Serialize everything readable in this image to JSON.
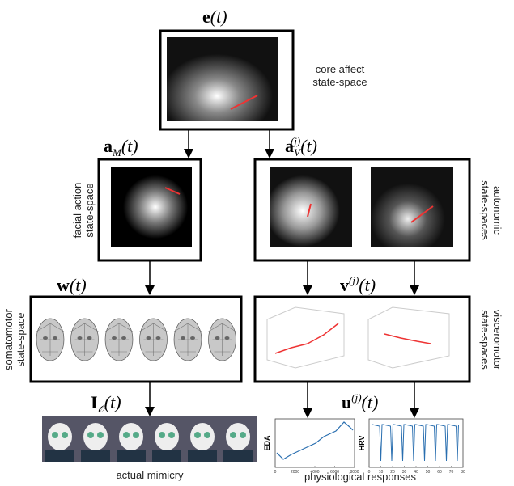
{
  "core": {
    "symbol": "e",
    "arg": "(t)",
    "caption": [
      "core affect",
      "state-space"
    ]
  },
  "facial": {
    "symbol": "a",
    "sub": "M",
    "arg": "(t)",
    "caption": [
      "facial action",
      "state-space"
    ]
  },
  "autonomic": {
    "symbol": "a",
    "sub": "V",
    "sup": "(j)",
    "arg": "(t)",
    "caption": [
      "autonomic",
      "state-spaces"
    ]
  },
  "somatomotor": {
    "symbol": "w",
    "arg": "(t)",
    "caption": [
      "somatomotor",
      "state-space"
    ]
  },
  "visceromotor": {
    "symbol": "v",
    "sup": "(j)",
    "arg": "(t)",
    "caption": [
      "visceromotor",
      "state-spaces"
    ]
  },
  "mimicry": {
    "symbol": "I",
    "sub": "𝒪",
    "arg": "(t)",
    "caption": [
      "actual mimicry"
    ]
  },
  "physiological": {
    "symbol": "u",
    "sup": "(j)",
    "arg": "(t)",
    "caption": [
      "physiological responses"
    ],
    "plots": [
      {
        "ylabel": "EDA",
        "xticks": [
          0,
          2000,
          4000,
          6000,
          8000
        ]
      },
      {
        "ylabel": "HRV",
        "xticks": [
          0,
          10,
          20,
          30,
          40,
          50,
          60,
          70,
          80
        ]
      }
    ]
  }
}
